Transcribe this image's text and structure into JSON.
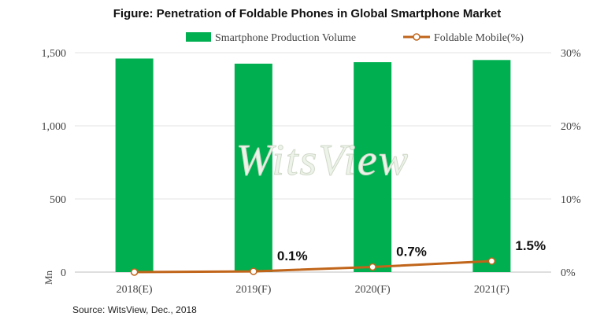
{
  "chart_data": {
    "type": "bar+line",
    "title": "Figure: Penetration  of Foldable Phones in Global  Smartphone Market",
    "categories": [
      "2018(E)",
      "2019(F)",
      "2020(F)",
      "2021(F)"
    ],
    "series": [
      {
        "name": "Smartphone Production Volume",
        "type": "bar",
        "axis": "left",
        "values": [
          1460,
          1425,
          1435,
          1450
        ],
        "color": "#00b050"
      },
      {
        "name": "Foldable Mobile(%)",
        "type": "line",
        "axis": "right",
        "values": [
          0.0,
          0.1,
          0.7,
          1.5
        ],
        "data_labels": [
          "",
          "0.1%",
          "0.7%",
          "1.5%"
        ],
        "color": "#c0651a"
      }
    ],
    "y_left": {
      "ticks": [
        "1,500",
        "1,000",
        "500",
        "0"
      ],
      "tick_values": [
        1500,
        1000,
        500,
        0
      ],
      "range": [
        0,
        1500
      ],
      "label": "Mn"
    },
    "y_right": {
      "ticks": [
        "30%",
        "20%",
        "10%",
        "0%"
      ],
      "tick_values": [
        30,
        20,
        10,
        0
      ],
      "range": [
        0,
        30
      ]
    },
    "watermark": "WitsView",
    "source": "Source: WitsView, Dec., 2018"
  }
}
